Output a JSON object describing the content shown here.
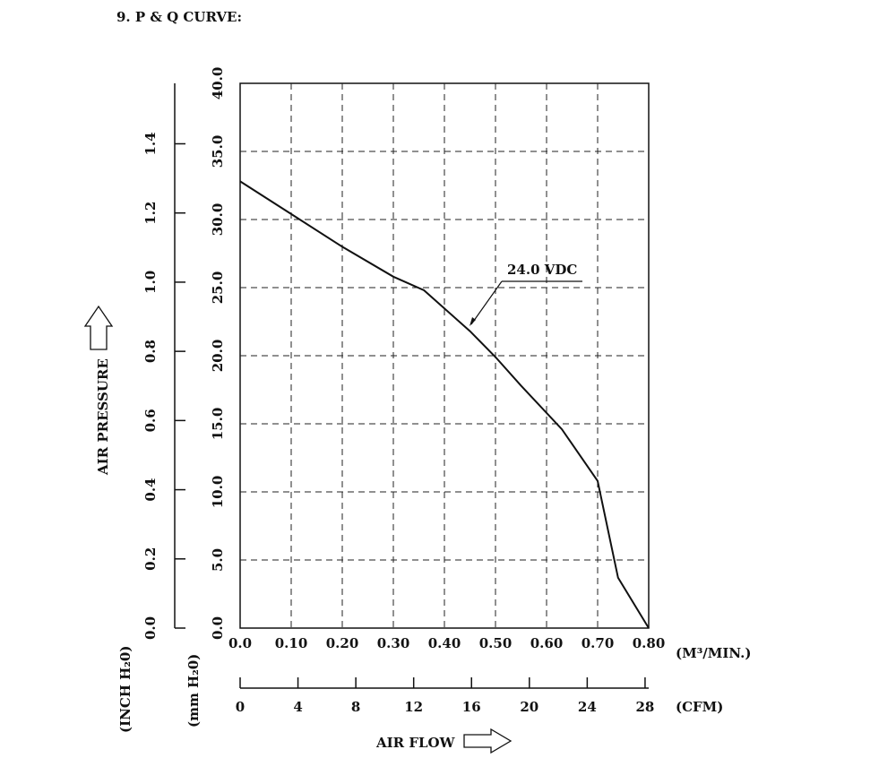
{
  "section_title": "9. P & Q CURVE:",
  "chart_data": {
    "type": "line",
    "xlabel": "AIR FLOW",
    "ylabel": "AIR PRESSURE",
    "x_units": [
      "(M³/MIN.)",
      "(CFM)"
    ],
    "y_units": [
      "(INCH H₂0)",
      "(mm H₂0)"
    ],
    "xlim": [
      0,
      0.8
    ],
    "ylim": [
      0,
      40
    ],
    "grid": true,
    "x_ticks": [
      "0.0",
      "0.10",
      "0.20",
      "0.30",
      "0.40",
      "0.50",
      "0.60",
      "0.70",
      "0.80"
    ],
    "cfm_ticks": [
      "0",
      "4",
      "8",
      "12",
      "16",
      "20",
      "24",
      "28"
    ],
    "y_ticks_mm": [
      "0.0",
      "5.0",
      "10.0",
      "15.0",
      "20.0",
      "25.0",
      "30.0",
      "35.0",
      "40.0"
    ],
    "y_ticks_inch": [
      "0.0",
      "0.2",
      "0.4",
      "0.6",
      "0.8",
      "1.0",
      "1.2",
      "1.4"
    ],
    "series": [
      {
        "name": "24.0 VDC",
        "x": [
          0.0,
          0.1,
          0.2,
          0.3,
          0.36,
          0.45,
          0.5,
          0.55,
          0.63,
          0.7,
          0.74,
          0.8
        ],
        "y": [
          32.8,
          30.4,
          28.0,
          25.8,
          24.8,
          21.8,
          19.9,
          17.8,
          14.6,
          10.8,
          3.7,
          0.0
        ]
      }
    ]
  }
}
